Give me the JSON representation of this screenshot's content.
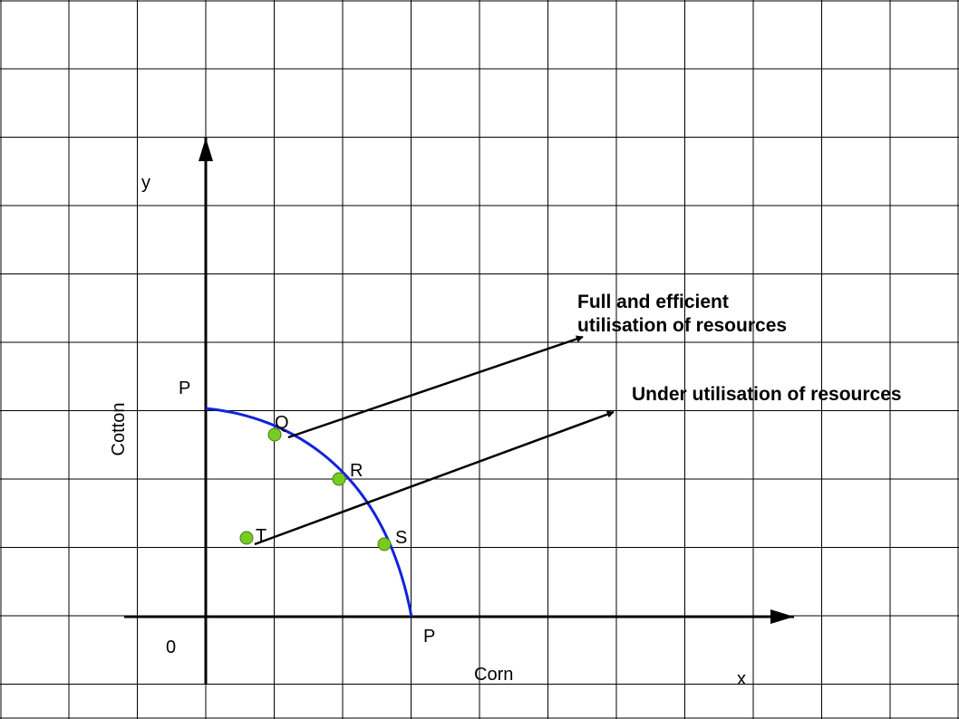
{
  "axes": {
    "y_symbol": "y",
    "x_symbol": "x",
    "origin": "0",
    "y_title": "Cotton",
    "x_title": "Corn"
  },
  "curve": {
    "intercept_y": "P",
    "intercept_x": "P",
    "color": "#1122dd"
  },
  "points": {
    "q": "Q",
    "r": "R",
    "s": "S",
    "t": "T",
    "color": "#77cc22"
  },
  "annotations": {
    "full_line1": "Full and efficient",
    "full_line2": "utilisation of resources",
    "under": "Under utilisation of resources"
  }
}
